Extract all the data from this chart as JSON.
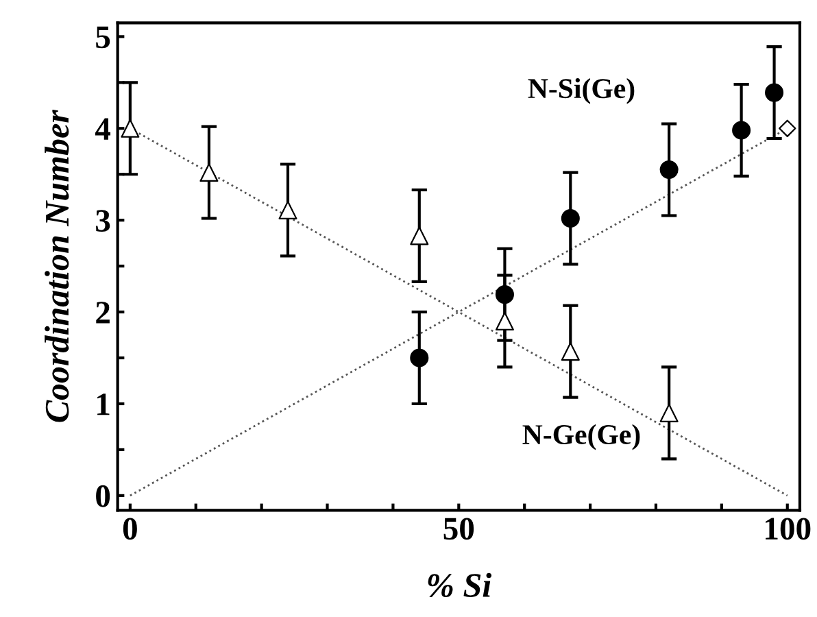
{
  "chart_data": {
    "type": "scatter",
    "xlabel": "% Si",
    "ylabel": "Coordination Number",
    "xlim": [
      -1.9,
      101.9
    ],
    "ylim": [
      -0.16,
      5.15
    ],
    "xticks": [
      0,
      {
        "value": 10,
        "label": null
      },
      {
        "value": 20,
        "label": null
      },
      {
        "value": 30,
        "label": null
      },
      {
        "value": 40,
        "label": null
      },
      50,
      {
        "value": 60,
        "label": null
      },
      {
        "value": 70,
        "label": null
      },
      {
        "value": 80,
        "label": null
      },
      {
        "value": 90,
        "label": null
      },
      100
    ],
    "yticks": [
      0,
      {
        "value": 0.5,
        "label": null
      },
      1,
      {
        "value": 1.5,
        "label": null
      },
      2,
      {
        "value": 2.5,
        "label": null
      },
      3,
      {
        "value": 3.5,
        "label": null
      },
      4,
      {
        "value": 4.5,
        "label": null
      },
      5
    ],
    "grid": false,
    "legend": false,
    "series": [
      {
        "type": "line",
        "color": "#555555",
        "line_style": "dotted",
        "marker": "none",
        "x": [
          0,
          100
        ],
        "values": [
          4,
          0
        ]
      },
      {
        "type": "line",
        "color": "#555555",
        "line_style": "dotted",
        "marker": "none",
        "x": [
          0,
          100
        ],
        "values": [
          0,
          4
        ]
      },
      {
        "name": "N-Ge(Ge)",
        "color": "#000000",
        "marker": "triangle",
        "x": [
          0,
          12,
          24,
          44,
          57,
          67,
          82
        ],
        "values": [
          4.0,
          3.52,
          3.11,
          2.83,
          1.9,
          1.57,
          0.9
        ],
        "errors": [
          0.5,
          0.5,
          0.5,
          0.5,
          0.5,
          0.5,
          0.5
        ]
      },
      {
        "name": "N-Si(Ge)",
        "color": "#000000",
        "marker": "circle",
        "x": [
          44,
          57,
          67,
          82,
          93,
          98
        ],
        "values": [
          1.5,
          2.19,
          3.02,
          3.55,
          3.98,
          4.39
        ],
        "errors": [
          0.5,
          0.5,
          0.5,
          0.5,
          0.5,
          0.5
        ]
      },
      {
        "color": "#000000",
        "marker": "diamond",
        "x": [
          100
        ],
        "values": [
          4.0
        ]
      }
    ]
  }
}
